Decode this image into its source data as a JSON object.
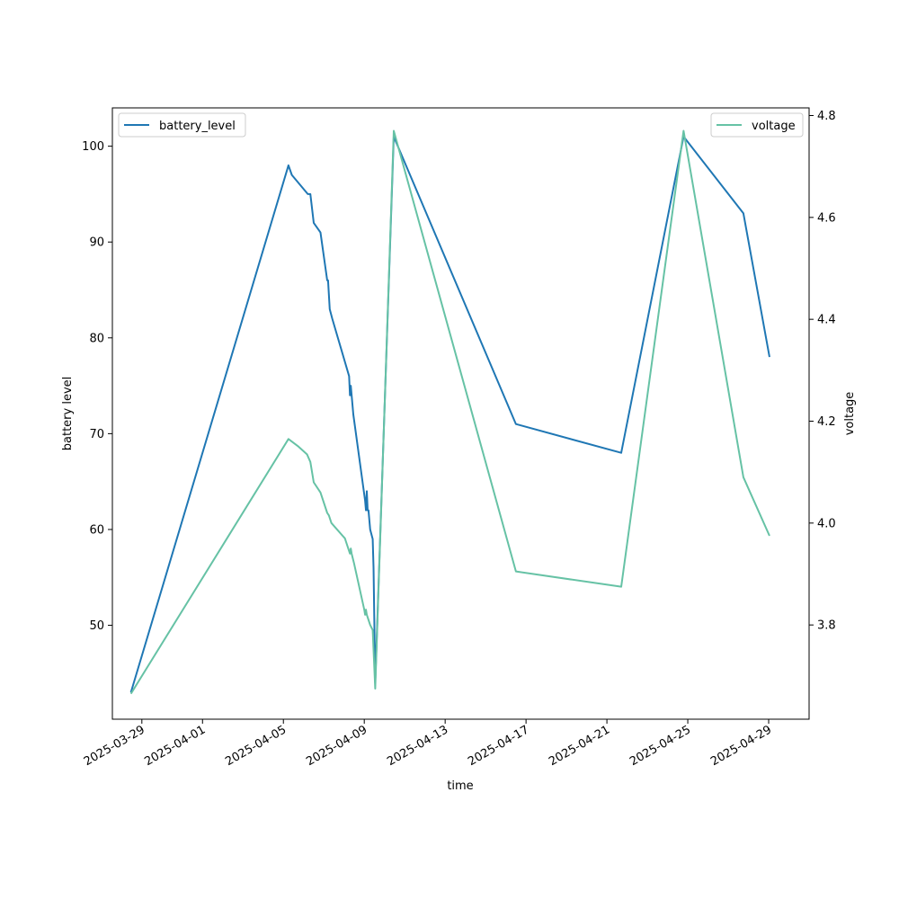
{
  "chart_data": {
    "type": "line",
    "x_type": "date",
    "xlabel": "time",
    "ylabel_left": "battery level",
    "ylabel_right": "voltage",
    "x_ticks": [
      "2025-03-29",
      "2025-04-01",
      "2025-04-05",
      "2025-04-09",
      "2025-04-13",
      "2025-04-17",
      "2025-04-21",
      "2025-04-25",
      "2025-04-29"
    ],
    "y_left_ticks": [
      50,
      60,
      70,
      80,
      90,
      100
    ],
    "y_right_ticks": [
      3.8,
      4.0,
      4.2,
      4.4,
      4.6,
      4.8
    ],
    "x_range": [
      "2025-03-27T13:00",
      "2025-05-01T00:00"
    ],
    "ylim_left": [
      40.2,
      104.0
    ],
    "ylim_right": [
      3.615,
      4.815
    ],
    "legend_left": "top-left",
    "legend_right": "top-right",
    "grid": false,
    "series": [
      {
        "name": "battery_level",
        "axis": "left",
        "color": "#1f77b4",
        "points": [
          [
            "2025-03-28T11:00",
            43
          ],
          [
            "2025-04-05T06:00",
            98
          ],
          [
            "2025-04-05T10:00",
            97
          ],
          [
            "2025-04-06T05:00",
            95
          ],
          [
            "2025-04-06T08:00",
            95
          ],
          [
            "2025-04-06T12:00",
            92
          ],
          [
            "2025-04-06T20:00",
            91
          ],
          [
            "2025-04-07T04:00",
            86
          ],
          [
            "2025-04-07T05:00",
            86
          ],
          [
            "2025-04-07T07:00",
            83
          ],
          [
            "2025-04-07T10:00",
            82
          ],
          [
            "2025-04-08T06:00",
            76
          ],
          [
            "2025-04-08T07:00",
            74
          ],
          [
            "2025-04-08T08:00",
            75
          ],
          [
            "2025-04-08T09:00",
            74
          ],
          [
            "2025-04-08T11:00",
            72
          ],
          [
            "2025-04-09T01:00",
            63
          ],
          [
            "2025-04-09T02:00",
            62
          ],
          [
            "2025-04-09T03:00",
            64
          ],
          [
            "2025-04-09T04:00",
            62
          ],
          [
            "2025-04-09T05:00",
            62
          ],
          [
            "2025-04-09T07:00",
            60
          ],
          [
            "2025-04-09T10:00",
            59
          ],
          [
            "2025-04-09T11:00",
            56
          ],
          [
            "2025-04-09T13:00",
            44
          ],
          [
            "2025-04-10T11:00",
            101
          ],
          [
            "2025-04-16T12:00",
            71
          ],
          [
            "2025-04-21T17:00",
            68
          ],
          [
            "2025-04-24T19:00",
            101
          ],
          [
            "2025-04-27T18:00",
            93
          ],
          [
            "2025-04-29T01:00",
            78
          ]
        ]
      },
      {
        "name": "voltage",
        "axis": "right",
        "color": "#66c2a5",
        "points": [
          [
            "2025-03-28T11:00",
            3.665
          ],
          [
            "2025-04-05T06:00",
            4.165
          ],
          [
            "2025-04-05T18:00",
            4.15
          ],
          [
            "2025-04-06T04:00",
            4.135
          ],
          [
            "2025-04-06T08:00",
            4.12
          ],
          [
            "2025-04-06T12:00",
            4.08
          ],
          [
            "2025-04-06T20:00",
            4.06
          ],
          [
            "2025-04-07T04:00",
            4.02
          ],
          [
            "2025-04-07T06:00",
            4.015
          ],
          [
            "2025-04-07T09:00",
            4.0
          ],
          [
            "2025-04-08T01:00",
            3.97
          ],
          [
            "2025-04-08T07:00",
            3.94
          ],
          [
            "2025-04-08T08:00",
            3.95
          ],
          [
            "2025-04-08T09:00",
            3.94
          ],
          [
            "2025-04-08T12:00",
            3.92
          ],
          [
            "2025-04-09T00:00",
            3.83
          ],
          [
            "2025-04-09T01:00",
            3.82
          ],
          [
            "2025-04-09T02:00",
            3.83
          ],
          [
            "2025-04-09T03:00",
            3.82
          ],
          [
            "2025-04-09T05:00",
            3.81
          ],
          [
            "2025-04-09T07:00",
            3.8
          ],
          [
            "2025-04-09T10:00",
            3.79
          ],
          [
            "2025-04-09T13:00",
            3.675
          ],
          [
            "2025-04-10T11:00",
            4.77
          ],
          [
            "2025-04-16T12:00",
            3.905
          ],
          [
            "2025-04-21T17:00",
            3.875
          ],
          [
            "2025-04-24T19:00",
            4.77
          ],
          [
            "2025-04-27T18:00",
            4.09
          ],
          [
            "2025-04-29T01:00",
            3.975
          ]
        ]
      }
    ]
  }
}
